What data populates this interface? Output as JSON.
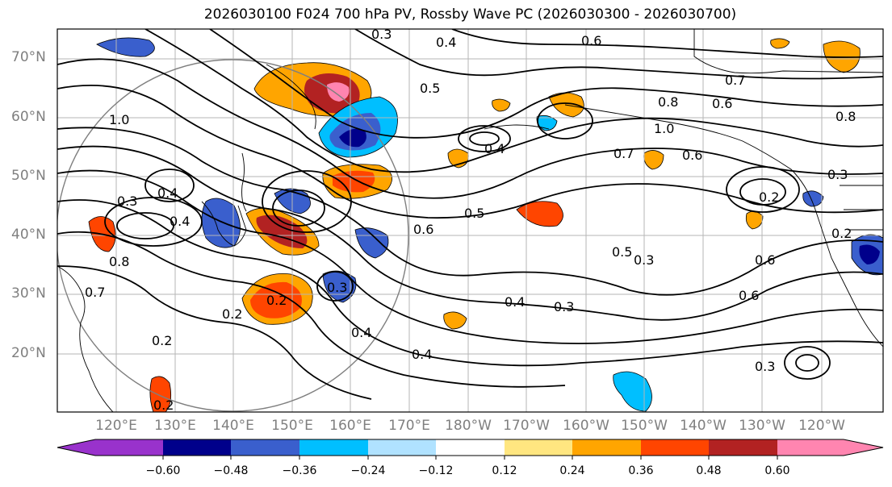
{
  "title": "2026030100 F024 700 hPa PV, Rossby Wave PC (2026030300 - 2026030700)",
  "lat_labels": [
    "70°N",
    "60°N",
    "50°N",
    "40°N",
    "30°N",
    "20°N"
  ],
  "lon_labels": [
    "120°E",
    "130°E",
    "140°E",
    "150°E",
    "160°E",
    "170°E",
    "180°W",
    "170°W",
    "160°W",
    "150°W",
    "140°W",
    "130°W",
    "120°W"
  ],
  "colorbar": {
    "ticks": [
      "−0.60",
      "−0.48",
      "−0.36",
      "−0.24",
      "−0.12",
      "0.12",
      "0.24",
      "0.36",
      "0.48",
      "0.60"
    ],
    "colors": [
      "#9932cc",
      "#00008b",
      "#3a5fcd",
      "#00bfff",
      "#b0e2ff",
      "#ffffff",
      "#ffe680",
      "#ffa500",
      "#ff4500",
      "#b22222",
      "#ff85b0"
    ]
  },
  "contour_labels": [
    "0.4",
    "0.6",
    "0.3",
    "0.7",
    "0.8",
    "0.6",
    "0.8",
    "1.0",
    "0.4",
    "0.5",
    "0.7",
    "0.6",
    "0.4",
    "0.3",
    "0.2",
    "0.6",
    "0.5",
    "0.5",
    "0.3",
    "0.6",
    "0.6",
    "0.4",
    "0.3",
    "0.2",
    "0.4",
    "0.4",
    "0.3",
    "0.2",
    "0.3",
    "0.8",
    "0.7",
    "0.2",
    "0.2",
    "0.2",
    "0.3",
    "0.4",
    "1.0"
  ]
}
